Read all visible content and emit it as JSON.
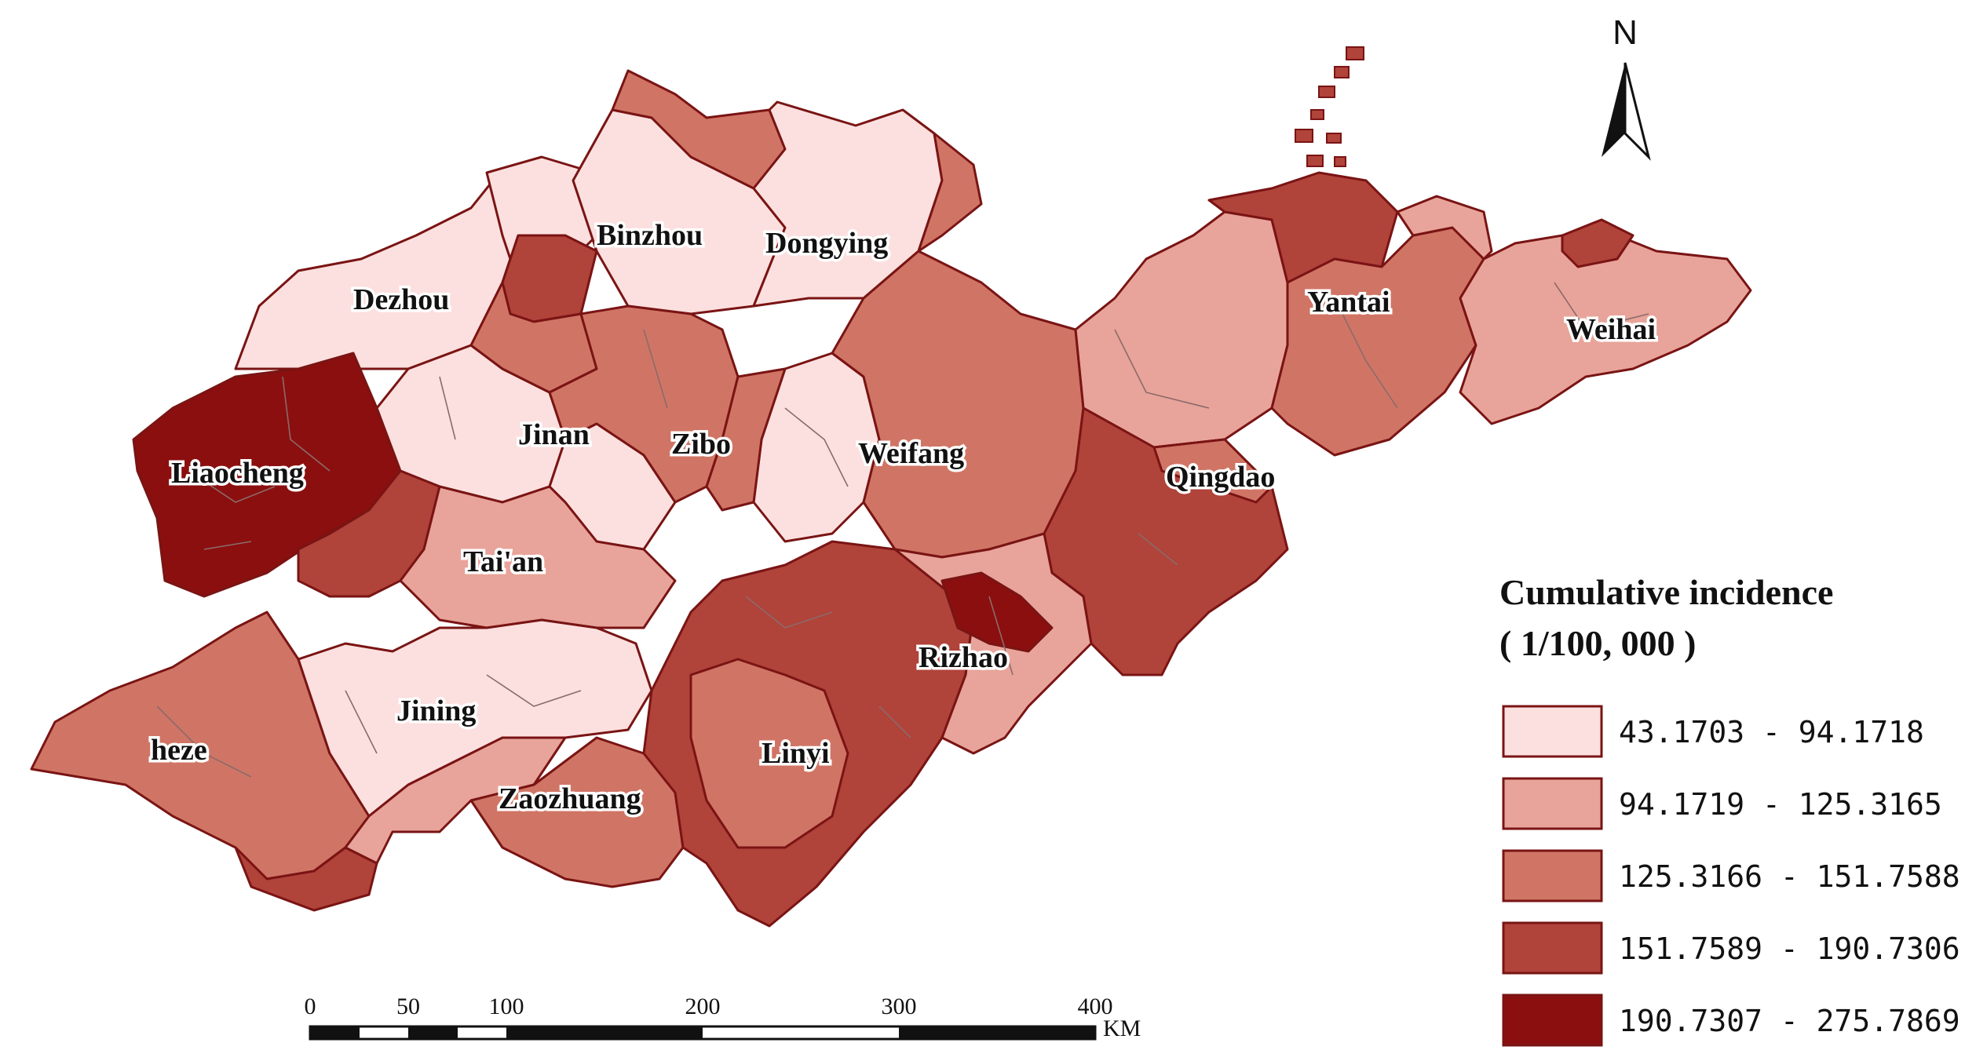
{
  "map": {
    "classes": [
      {
        "range": "43.1703 - 94.1718",
        "color": "#fbe0df"
      },
      {
        "range": "94.1719 - 125.3165",
        "color": "#e8a49a"
      },
      {
        "range": "125.3166 - 151.7588",
        "color": "#d07565"
      },
      {
        "range": "151.7589 - 190.7306",
        "color": "#b0433a"
      },
      {
        "range": "190.7307 - 275.7869",
        "color": "#8b0f0f"
      }
    ],
    "cities": [
      {
        "name": "Binzhou",
        "class": 1
      },
      {
        "name": "Dongying",
        "class": 1
      },
      {
        "name": "Dezhou",
        "class": 1
      },
      {
        "name": "Yantai",
        "class": 2
      },
      {
        "name": "Weihai",
        "class": 2
      },
      {
        "name": "Jinan",
        "class": 1
      },
      {
        "name": "Zibo",
        "class": 3
      },
      {
        "name": "Weifang",
        "class": 1
      },
      {
        "name": "Liaocheng",
        "class": 5
      },
      {
        "name": "Qingdao",
        "class": 4
      },
      {
        "name": "Tai'an",
        "class": 2
      },
      {
        "name": "Rizhao",
        "class": 5
      },
      {
        "name": "Jining",
        "class": 1
      },
      {
        "name": "heze",
        "class": 3
      },
      {
        "name": "Linyi",
        "class": 4
      },
      {
        "name": "Zaozhuang",
        "class": 3
      }
    ]
  },
  "legend": {
    "title_line1": "Cumulative incidence",
    "title_line2": "( 1/100, 000 )"
  },
  "north_arrow": {
    "label": "N"
  },
  "scale_bar": {
    "ticks": [
      "0",
      "50",
      "100",
      "200",
      "300",
      "400"
    ],
    "unit": "KM"
  }
}
